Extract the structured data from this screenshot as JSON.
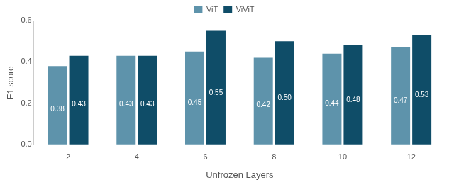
{
  "chart_data": {
    "type": "bar",
    "x_label": "Unfrozen Layers",
    "y_label": "F1 score",
    "categories": [
      "2",
      "4",
      "6",
      "8",
      "10",
      "12"
    ],
    "series": [
      {
        "name": "ViT",
        "color": "#5e93ab",
        "values": [
          0.38,
          0.43,
          0.45,
          0.42,
          0.44,
          0.47
        ],
        "value_labels": [
          "0.38",
          "0.43",
          "0.45",
          "0.42",
          "0.44",
          "0.47"
        ]
      },
      {
        "name": "ViViT",
        "color": "#0f4d68",
        "values": [
          0.43,
          0.43,
          0.55,
          0.5,
          0.48,
          0.53
        ],
        "value_labels": [
          "0.43",
          "0.43",
          "0.55",
          "0.50",
          "0.48",
          "0.53"
        ]
      }
    ],
    "ylim": [
      0,
      0.6
    ],
    "yticks": [
      {
        "value": 0,
        "label": "0.0"
      },
      0.2,
      0.4,
      0.6
    ],
    "grid": true,
    "legend": "top",
    "data_labels": true
  }
}
